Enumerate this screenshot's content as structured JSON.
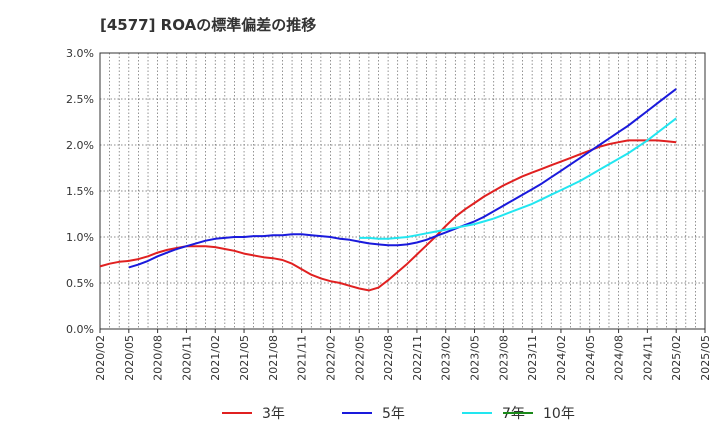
{
  "chart_data": {
    "type": "line",
    "title": "[4577]  ROAの標準偏差の推移",
    "xlabel": "",
    "ylabel": "",
    "ylim": [
      0,
      3.0
    ],
    "y_ticks": [
      "0.0%",
      "0.5%",
      "1.0%",
      "1.5%",
      "2.0%",
      "2.5%",
      "3.0%"
    ],
    "x_ticks": [
      "2020/02",
      "2020/05",
      "2020/08",
      "2020/11",
      "2021/02",
      "2021/05",
      "2021/08",
      "2021/11",
      "2022/02",
      "2022/05",
      "2022/08",
      "2022/11",
      "2023/02",
      "2023/05",
      "2023/08",
      "2023/11",
      "2024/02",
      "2024/05",
      "2024/08",
      "2024/11",
      "2025/02",
      "2025/05"
    ],
    "grid": true,
    "legend_position": "bottom",
    "series": [
      {
        "name": "3年",
        "color": "#e02020",
        "points": [
          [
            "2020/02",
            0.68
          ],
          [
            "2020/03",
            0.71
          ],
          [
            "2020/04",
            0.73
          ],
          [
            "2020/05",
            0.74
          ],
          [
            "2020/06",
            0.76
          ],
          [
            "2020/07",
            0.79
          ],
          [
            "2020/08",
            0.83
          ],
          [
            "2020/09",
            0.86
          ],
          [
            "2020/10",
            0.88
          ],
          [
            "2020/11",
            0.9
          ],
          [
            "2020/12",
            0.9
          ],
          [
            "2021/01",
            0.9
          ],
          [
            "2021/02",
            0.89
          ],
          [
            "2021/03",
            0.87
          ],
          [
            "2021/04",
            0.85
          ],
          [
            "2021/05",
            0.82
          ],
          [
            "2021/06",
            0.8
          ],
          [
            "2021/07",
            0.78
          ],
          [
            "2021/08",
            0.77
          ],
          [
            "2021/09",
            0.75
          ],
          [
            "2021/10",
            0.71
          ],
          [
            "2021/11",
            0.65
          ],
          [
            "2021/12",
            0.59
          ],
          [
            "2022/01",
            0.55
          ],
          [
            "2022/02",
            0.52
          ],
          [
            "2022/03",
            0.5
          ],
          [
            "2022/04",
            0.47
          ],
          [
            "2022/05",
            0.44
          ],
          [
            "2022/06",
            0.42
          ],
          [
            "2022/07",
            0.45
          ],
          [
            "2022/08",
            0.53
          ],
          [
            "2022/09",
            0.62
          ],
          [
            "2022/10",
            0.71
          ],
          [
            "2022/11",
            0.81
          ],
          [
            "2022/12",
            0.91
          ],
          [
            "2023/01",
            1.01
          ],
          [
            "2023/02",
            1.12
          ],
          [
            "2023/03",
            1.22
          ],
          [
            "2023/04",
            1.3
          ],
          [
            "2023/05",
            1.37
          ],
          [
            "2023/06",
            1.44
          ],
          [
            "2023/07",
            1.5
          ],
          [
            "2023/08",
            1.56
          ],
          [
            "2023/09",
            1.61
          ],
          [
            "2023/10",
            1.66
          ],
          [
            "2023/11",
            1.7
          ],
          [
            "2023/12",
            1.74
          ],
          [
            "2024/01",
            1.78
          ],
          [
            "2024/02",
            1.82
          ],
          [
            "2024/03",
            1.86
          ],
          [
            "2024/04",
            1.9
          ],
          [
            "2024/05",
            1.94
          ],
          [
            "2024/06",
            1.98
          ],
          [
            "2024/07",
            2.01
          ],
          [
            "2024/08",
            2.03
          ],
          [
            "2024/09",
            2.05
          ],
          [
            "2024/10",
            2.05
          ],
          [
            "2024/11",
            2.05
          ],
          [
            "2024/12",
            2.05
          ],
          [
            "2025/01",
            2.04
          ],
          [
            "2025/02",
            2.03
          ]
        ]
      },
      {
        "name": "5年",
        "color": "#1a1adc",
        "points": [
          [
            "2020/05",
            0.67
          ],
          [
            "2020/06",
            0.7
          ],
          [
            "2020/07",
            0.74
          ],
          [
            "2020/08",
            0.79
          ],
          [
            "2020/09",
            0.83
          ],
          [
            "2020/10",
            0.87
          ],
          [
            "2020/11",
            0.9
          ],
          [
            "2020/12",
            0.93
          ],
          [
            "2021/01",
            0.96
          ],
          [
            "2021/02",
            0.98
          ],
          [
            "2021/03",
            0.99
          ],
          [
            "2021/04",
            1.0
          ],
          [
            "2021/05",
            1.0
          ],
          [
            "2021/06",
            1.01
          ],
          [
            "2021/07",
            1.01
          ],
          [
            "2021/08",
            1.02
          ],
          [
            "2021/09",
            1.02
          ],
          [
            "2021/10",
            1.03
          ],
          [
            "2021/11",
            1.03
          ],
          [
            "2021/12",
            1.02
          ],
          [
            "2022/01",
            1.01
          ],
          [
            "2022/02",
            1.0
          ],
          [
            "2022/03",
            0.98
          ],
          [
            "2022/04",
            0.97
          ],
          [
            "2022/05",
            0.95
          ],
          [
            "2022/06",
            0.93
          ],
          [
            "2022/07",
            0.92
          ],
          [
            "2022/08",
            0.91
          ],
          [
            "2022/09",
            0.91
          ],
          [
            "2022/10",
            0.92
          ],
          [
            "2022/11",
            0.94
          ],
          [
            "2022/12",
            0.97
          ],
          [
            "2023/01",
            1.01
          ],
          [
            "2023/02",
            1.05
          ],
          [
            "2023/03",
            1.09
          ],
          [
            "2023/04",
            1.13
          ],
          [
            "2023/05",
            1.17
          ],
          [
            "2023/06",
            1.22
          ],
          [
            "2023/07",
            1.28
          ],
          [
            "2023/08",
            1.34
          ],
          [
            "2023/09",
            1.4
          ],
          [
            "2023/10",
            1.46
          ],
          [
            "2023/11",
            1.52
          ],
          [
            "2023/12",
            1.58
          ],
          [
            "2024/01",
            1.65
          ],
          [
            "2024/02",
            1.72
          ],
          [
            "2024/03",
            1.79
          ],
          [
            "2024/04",
            1.86
          ],
          [
            "2024/05",
            1.93
          ],
          [
            "2024/06",
            2.0
          ],
          [
            "2024/07",
            2.07
          ],
          [
            "2024/08",
            2.14
          ],
          [
            "2024/09",
            2.21
          ],
          [
            "2024/10",
            2.29
          ],
          [
            "2024/11",
            2.37
          ],
          [
            "2024/12",
            2.45
          ],
          [
            "2025/01",
            2.53
          ],
          [
            "2025/02",
            2.61
          ]
        ]
      },
      {
        "name": "7年",
        "color": "#22e6f0",
        "points": [
          [
            "2022/05",
            0.99
          ],
          [
            "2022/06",
            0.99
          ],
          [
            "2022/07",
            0.98
          ],
          [
            "2022/08",
            0.98
          ],
          [
            "2022/09",
            0.99
          ],
          [
            "2022/10",
            1.0
          ],
          [
            "2022/11",
            1.02
          ],
          [
            "2022/12",
            1.04
          ],
          [
            "2023/01",
            1.06
          ],
          [
            "2023/02",
            1.08
          ],
          [
            "2023/03",
            1.1
          ],
          [
            "2023/04",
            1.12
          ],
          [
            "2023/05",
            1.14
          ],
          [
            "2023/06",
            1.17
          ],
          [
            "2023/07",
            1.2
          ],
          [
            "2023/08",
            1.24
          ],
          [
            "2023/09",
            1.28
          ],
          [
            "2023/10",
            1.32
          ],
          [
            "2023/11",
            1.36
          ],
          [
            "2023/12",
            1.41
          ],
          [
            "2024/01",
            1.46
          ],
          [
            "2024/02",
            1.51
          ],
          [
            "2024/03",
            1.56
          ],
          [
            "2024/04",
            1.61
          ],
          [
            "2024/05",
            1.67
          ],
          [
            "2024/06",
            1.73
          ],
          [
            "2024/07",
            1.79
          ],
          [
            "2024/08",
            1.85
          ],
          [
            "2024/09",
            1.91
          ],
          [
            "2024/10",
            1.98
          ],
          [
            "2024/11",
            2.05
          ],
          [
            "2024/12",
            2.13
          ],
          [
            "2025/01",
            2.21
          ],
          [
            "2025/02",
            2.29
          ]
        ]
      },
      {
        "name": "10年",
        "color": "#1a8a1a",
        "points": []
      }
    ]
  }
}
